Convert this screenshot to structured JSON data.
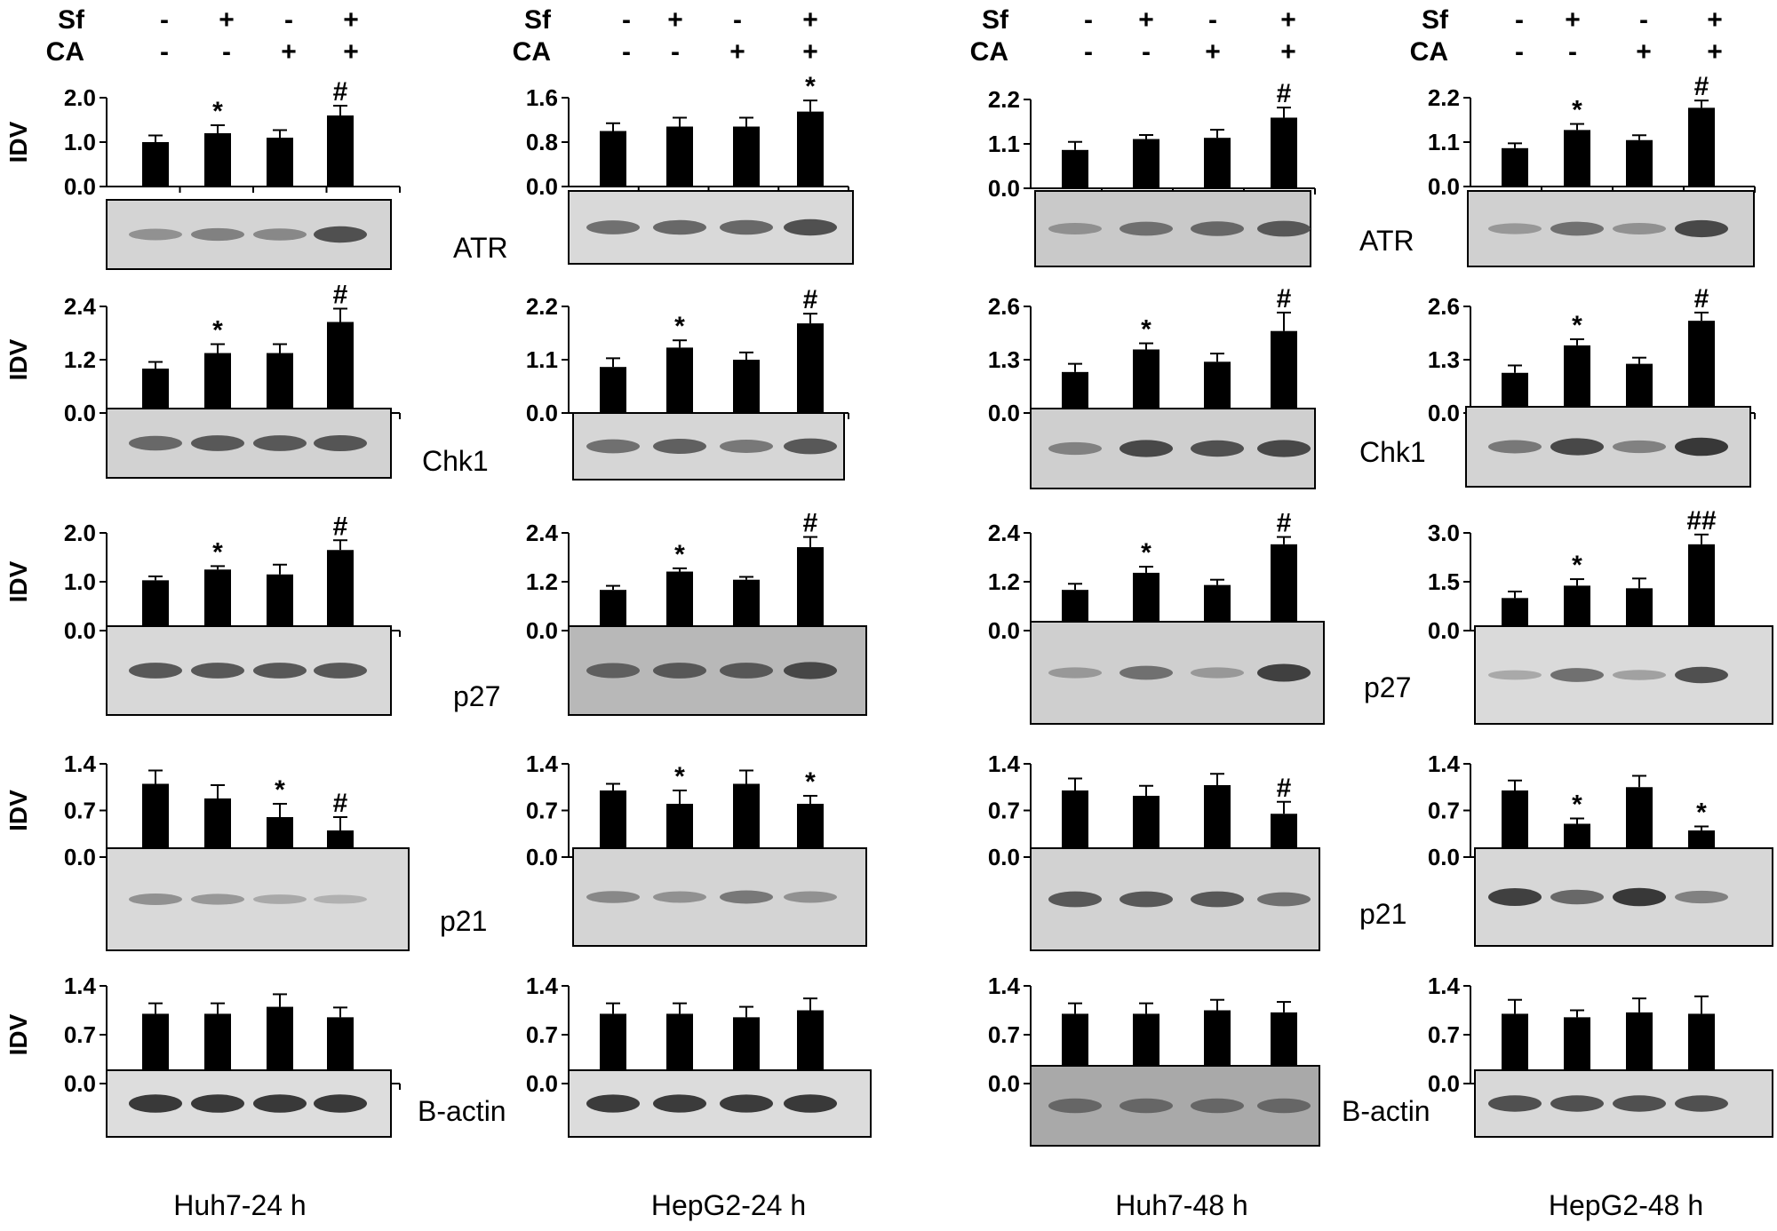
{
  "treatment_rows": {
    "row_labels": [
      "Sf",
      "CA"
    ],
    "sf": [
      "-",
      "+",
      "-",
      "+"
    ],
    "ca": [
      "-",
      "-",
      "+",
      "+"
    ]
  },
  "y_axis_title": "IDV",
  "proteins": [
    "ATR",
    "Chk1",
    "p27",
    "p21",
    "B-actin"
  ],
  "panels": [
    {
      "title": "Huh7-24 h"
    },
    {
      "title": "HepG2-24 h"
    },
    {
      "title": "Huh7-48 h"
    },
    {
      "title": "HepG2-48 h"
    }
  ],
  "colors": {
    "bar": "#000000",
    "blot_bg": "#d6d6d6",
    "band": "#333333",
    "axis": "#000000"
  },
  "chart_data": [
    {
      "type": "bar",
      "panel": "Huh7-24 h",
      "protein": "ATR",
      "ylim": [
        0,
        2.0
      ],
      "ticks": [
        "0.0",
        "1.0",
        "2.0"
      ],
      "categories": [
        "1",
        "2",
        "3",
        "4"
      ],
      "values": [
        1.0,
        1.2,
        1.1,
        1.6
      ],
      "errors": [
        0.15,
        0.18,
        0.17,
        0.22
      ],
      "annotations": [
        "",
        "*",
        "",
        "#"
      ],
      "band_intensity": [
        0.35,
        0.45,
        0.4,
        0.75
      ],
      "blot_bg": "#d4d4d4"
    },
    {
      "type": "bar",
      "panel": "HepG2-24 h",
      "protein": "ATR",
      "ylim": [
        0,
        1.6
      ],
      "ticks": [
        "0.0",
        "0.8",
        "1.6"
      ],
      "categories": [
        "1",
        "2",
        "3",
        "4"
      ],
      "values": [
        1.0,
        1.08,
        1.08,
        1.35
      ],
      "errors": [
        0.14,
        0.16,
        0.16,
        0.2
      ],
      "annotations": [
        "",
        "",
        "",
        "*"
      ],
      "band_intensity": [
        0.55,
        0.6,
        0.6,
        0.75
      ],
      "blot_bg": "#d9d9d9"
    },
    {
      "type": "bar",
      "panel": "Huh7-48 h",
      "protein": "ATR",
      "ylim": [
        0,
        2.2
      ],
      "ticks": [
        "0.0",
        "1.1",
        "2.2"
      ],
      "categories": [
        "1",
        "2",
        "3",
        "4"
      ],
      "values": [
        0.95,
        1.22,
        1.25,
        1.75
      ],
      "errors": [
        0.2,
        0.1,
        0.2,
        0.25
      ],
      "annotations": [
        "",
        "",
        "",
        "#"
      ],
      "band_intensity": [
        0.35,
        0.55,
        0.6,
        0.7
      ],
      "blot_bg": "#c9c9c9"
    },
    {
      "type": "bar",
      "panel": "HepG2-48 h",
      "protein": "ATR",
      "ylim": [
        0,
        2.2
      ],
      "ticks": [
        "0.0",
        "1.1",
        "2.2"
      ],
      "categories": [
        "1",
        "2",
        "3",
        "4"
      ],
      "values": [
        0.95,
        1.4,
        1.15,
        1.95
      ],
      "errors": [
        0.12,
        0.15,
        0.12,
        0.18
      ],
      "annotations": [
        "",
        "*",
        "",
        "#"
      ],
      "band_intensity": [
        0.3,
        0.55,
        0.35,
        0.8
      ],
      "blot_bg": "#d0d0d0"
    },
    {
      "type": "bar",
      "panel": "Huh7-24 h",
      "protein": "Chk1",
      "ylim": [
        0,
        2.4
      ],
      "ticks": [
        "0.0",
        "1.2",
        "2.4"
      ],
      "categories": [
        "1",
        "2",
        "3",
        "4"
      ],
      "values": [
        1.0,
        1.35,
        1.35,
        2.05
      ],
      "errors": [
        0.15,
        0.2,
        0.2,
        0.3
      ],
      "annotations": [
        "",
        "*",
        "",
        "#"
      ],
      "band_intensity": [
        0.6,
        0.7,
        0.7,
        0.72
      ],
      "blot_bg": "#d2d2d2"
    },
    {
      "type": "bar",
      "panel": "HepG2-24 h",
      "protein": "Chk1",
      "ylim": [
        0,
        2.2
      ],
      "ticks": [
        "0.0",
        "1.1",
        "2.2"
      ],
      "categories": [
        "1",
        "2",
        "3",
        "4"
      ],
      "values": [
        0.95,
        1.35,
        1.1,
        1.85
      ],
      "errors": [
        0.18,
        0.15,
        0.15,
        0.2
      ],
      "annotations": [
        "",
        "*",
        "",
        "#"
      ],
      "band_intensity": [
        0.55,
        0.65,
        0.5,
        0.7
      ],
      "blot_bg": "#d6d6d6"
    },
    {
      "type": "bar",
      "panel": "Huh7-48 h",
      "protein": "Chk1",
      "ylim": [
        0,
        2.6
      ],
      "ticks": [
        "0.0",
        "1.3",
        "2.6"
      ],
      "categories": [
        "1",
        "2",
        "3",
        "4"
      ],
      "values": [
        1.0,
        1.55,
        1.25,
        2.0
      ],
      "errors": [
        0.2,
        0.15,
        0.2,
        0.45
      ],
      "annotations": [
        "",
        "*",
        "",
        "#"
      ],
      "band_intensity": [
        0.45,
        0.8,
        0.75,
        0.8
      ],
      "blot_bg": "#cfcfcf"
    },
    {
      "type": "bar",
      "panel": "HepG2-48 h",
      "protein": "Chk1",
      "ylim": [
        0,
        2.6
      ],
      "ticks": [
        "0.0",
        "1.3",
        "2.6"
      ],
      "categories": [
        "1",
        "2",
        "3",
        "4"
      ],
      "values": [
        0.98,
        1.65,
        1.2,
        2.25
      ],
      "errors": [
        0.18,
        0.15,
        0.15,
        0.2
      ],
      "annotations": [
        "",
        "*",
        "",
        "#"
      ],
      "band_intensity": [
        0.5,
        0.8,
        0.45,
        0.9
      ],
      "blot_bg": "#d3d3d3"
    },
    {
      "type": "bar",
      "panel": "Huh7-24 h",
      "protein": "p27",
      "ylim": [
        0,
        2.0
      ],
      "ticks": [
        "0.0",
        "1.0",
        "2.0"
      ],
      "categories": [
        "1",
        "2",
        "3",
        "4"
      ],
      "values": [
        1.03,
        1.25,
        1.15,
        1.65
      ],
      "errors": [
        0.08,
        0.07,
        0.2,
        0.2
      ],
      "annotations": [
        "",
        "*",
        "",
        "#"
      ],
      "band_intensity": [
        0.7,
        0.7,
        0.7,
        0.7
      ],
      "blot_bg": "#d8d8d8"
    },
    {
      "type": "bar",
      "panel": "HepG2-24 h",
      "protein": "p27",
      "ylim": [
        0,
        2.4
      ],
      "ticks": [
        "0.0",
        "1.2",
        "2.4"
      ],
      "categories": [
        "1",
        "2",
        "3",
        "4"
      ],
      "values": [
        1.0,
        1.45,
        1.25,
        2.05
      ],
      "errors": [
        0.1,
        0.08,
        0.07,
        0.25
      ],
      "annotations": [
        "",
        "*",
        "",
        "#"
      ],
      "band_intensity": [
        0.65,
        0.7,
        0.7,
        0.8
      ],
      "blot_bg": "#b8b8b8"
    },
    {
      "type": "bar",
      "panel": "Huh7-48 h",
      "protein": "p27",
      "ylim": [
        0,
        2.4
      ],
      "ticks": [
        "0.0",
        "1.2",
        "2.4"
      ],
      "categories": [
        "1",
        "2",
        "3",
        "4"
      ],
      "values": [
        1.0,
        1.42,
        1.12,
        2.12
      ],
      "errors": [
        0.15,
        0.15,
        0.13,
        0.18
      ],
      "annotations": [
        "",
        "*",
        "",
        "#"
      ],
      "band_intensity": [
        0.3,
        0.55,
        0.3,
        0.85
      ],
      "blot_bg": "#cfcfcf"
    },
    {
      "type": "bar",
      "panel": "HepG2-48 h",
      "protein": "p27",
      "ylim": [
        0,
        3.0
      ],
      "ticks": [
        "0.0",
        "1.5",
        "3.0"
      ],
      "categories": [
        "1",
        "2",
        "3",
        "4"
      ],
      "values": [
        1.0,
        1.38,
        1.3,
        2.65
      ],
      "errors": [
        0.2,
        0.2,
        0.3,
        0.3
      ],
      "annotations": [
        "",
        "*",
        "",
        "##"
      ],
      "band_intensity": [
        0.2,
        0.55,
        0.25,
        0.75
      ],
      "blot_bg": "#dadada"
    },
    {
      "type": "bar",
      "panel": "Huh7-24 h",
      "protein": "p21",
      "ylim": [
        0,
        1.4
      ],
      "ticks": [
        "0.0",
        "0.7",
        "1.4"
      ],
      "categories": [
        "1",
        "2",
        "3",
        "4"
      ],
      "values": [
        1.1,
        0.88,
        0.6,
        0.4
      ],
      "errors": [
        0.2,
        0.2,
        0.2,
        0.2
      ],
      "annotations": [
        "",
        "",
        "*",
        "#"
      ],
      "band_intensity": [
        0.35,
        0.3,
        0.2,
        0.15
      ],
      "blot_bg": "#d9d9d9"
    },
    {
      "type": "bar",
      "panel": "HepG2-24 h",
      "protein": "p21",
      "ylim": [
        0,
        1.4
      ],
      "ticks": [
        "0.0",
        "0.7",
        "1.4"
      ],
      "categories": [
        "1",
        "2",
        "3",
        "4"
      ],
      "values": [
        1.0,
        0.8,
        1.1,
        0.8
      ],
      "errors": [
        0.1,
        0.2,
        0.2,
        0.12
      ],
      "annotations": [
        "",
        "*",
        "",
        "*"
      ],
      "band_intensity": [
        0.4,
        0.35,
        0.5,
        0.35
      ],
      "blot_bg": "#d4d4d4"
    },
    {
      "type": "bar",
      "panel": "Huh7-48 h",
      "protein": "p21",
      "ylim": [
        0,
        1.4
      ],
      "ticks": [
        "0.0",
        "0.7",
        "1.4"
      ],
      "categories": [
        "1",
        "2",
        "3",
        "4"
      ],
      "values": [
        1.0,
        0.92,
        1.08,
        0.65
      ],
      "errors": [
        0.18,
        0.15,
        0.17,
        0.18
      ],
      "annotations": [
        "",
        "",
        "",
        "#"
      ],
      "band_intensity": [
        0.7,
        0.7,
        0.7,
        0.55
      ],
      "blot_bg": "#d2d2d2"
    },
    {
      "type": "bar",
      "panel": "HepG2-48 h",
      "protein": "p21",
      "ylim": [
        0,
        1.4
      ],
      "ticks": [
        "0.0",
        "0.7",
        "1.4"
      ],
      "categories": [
        "1",
        "2",
        "3",
        "4"
      ],
      "values": [
        1.0,
        0.5,
        1.05,
        0.4
      ],
      "errors": [
        0.15,
        0.08,
        0.17,
        0.06
      ],
      "annotations": [
        "",
        "*",
        "",
        "*"
      ],
      "band_intensity": [
        0.85,
        0.6,
        0.9,
        0.45
      ],
      "blot_bg": "#d7d7d7"
    },
    {
      "type": "bar",
      "panel": "Huh7-24 h",
      "protein": "B-actin",
      "ylim": [
        0,
        1.4
      ],
      "ticks": [
        "0.0",
        "0.7",
        "1.4"
      ],
      "categories": [
        "1",
        "2",
        "3",
        "4"
      ],
      "values": [
        1.0,
        1.0,
        1.1,
        0.95
      ],
      "errors": [
        0.15,
        0.15,
        0.18,
        0.14
      ],
      "annotations": [
        "",
        "",
        "",
        ""
      ],
      "band_intensity": [
        0.9,
        0.9,
        0.9,
        0.9
      ],
      "blot_bg": "#dddddd"
    },
    {
      "type": "bar",
      "panel": "HepG2-24 h",
      "protein": "B-actin",
      "ylim": [
        0,
        1.4
      ],
      "ticks": [
        "0.0",
        "0.7",
        "1.4"
      ],
      "categories": [
        "1",
        "2",
        "3",
        "4"
      ],
      "values": [
        1.0,
        1.0,
        0.95,
        1.05
      ],
      "errors": [
        0.15,
        0.15,
        0.15,
        0.17
      ],
      "annotations": [
        "",
        "",
        "",
        ""
      ],
      "band_intensity": [
        0.88,
        0.88,
        0.88,
        0.9
      ],
      "blot_bg": "#dcdcdc"
    },
    {
      "type": "bar",
      "panel": "Huh7-48 h",
      "protein": "B-actin",
      "ylim": [
        0,
        1.4
      ],
      "ticks": [
        "0.0",
        "0.7",
        "1.4"
      ],
      "categories": [
        "1",
        "2",
        "3",
        "4"
      ],
      "values": [
        1.0,
        1.0,
        1.05,
        1.02
      ],
      "errors": [
        0.15,
        0.15,
        0.15,
        0.15
      ],
      "annotations": [
        "",
        "",
        "",
        ""
      ],
      "band_intensity": [
        0.6,
        0.6,
        0.6,
        0.6
      ],
      "blot_bg": "#a9a9a9"
    },
    {
      "type": "bar",
      "panel": "HepG2-48 h",
      "protein": "B-actin",
      "ylim": [
        0,
        1.4
      ],
      "ticks": [
        "0.0",
        "0.7",
        "1.4"
      ],
      "categories": [
        "1",
        "2",
        "3",
        "4"
      ],
      "values": [
        1.0,
        0.95,
        1.02,
        1.0
      ],
      "errors": [
        0.2,
        0.1,
        0.2,
        0.25
      ],
      "annotations": [
        "",
        "",
        "",
        ""
      ],
      "band_intensity": [
        0.75,
        0.75,
        0.75,
        0.75
      ],
      "blot_bg": "#d8d8d8"
    }
  ]
}
